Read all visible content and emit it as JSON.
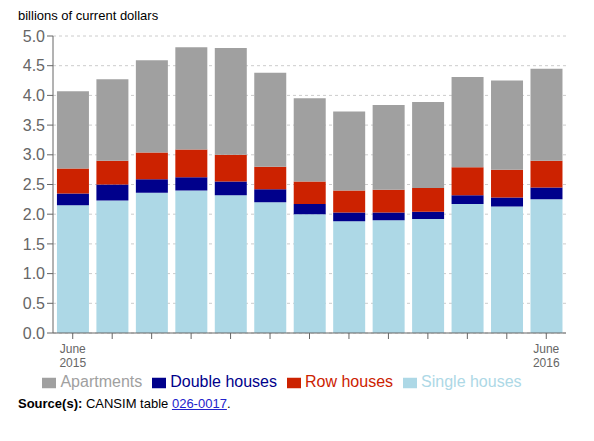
{
  "chart_data": {
    "type": "bar",
    "stacked": true,
    "y_label": "billions of current dollars",
    "categories": [
      "June\n2015",
      null,
      null,
      null,
      null,
      null,
      null,
      null,
      null,
      null,
      null,
      null,
      "June\n2016"
    ],
    "series": [
      {
        "name": "Single houses",
        "color": "#add8e6",
        "values": [
          2.15,
          2.23,
          2.36,
          2.4,
          2.32,
          2.2,
          2.0,
          1.88,
          1.9,
          1.92,
          2.17,
          2.13,
          2.25
        ]
      },
      {
        "name": "Double houses",
        "color": "#00008b",
        "values": [
          0.2,
          0.27,
          0.23,
          0.22,
          0.23,
          0.22,
          0.17,
          0.15,
          0.13,
          0.12,
          0.15,
          0.15,
          0.2
        ]
      },
      {
        "name": "Row houses",
        "color": "#cc2200",
        "values": [
          0.42,
          0.4,
          0.45,
          0.47,
          0.45,
          0.38,
          0.38,
          0.37,
          0.38,
          0.4,
          0.47,
          0.47,
          0.45
        ]
      },
      {
        "name": "Apartments",
        "color": "#a0a0a0",
        "values": [
          1.3,
          1.37,
          1.55,
          1.72,
          1.8,
          1.58,
          1.4,
          1.33,
          1.43,
          1.45,
          1.52,
          1.5,
          1.55
        ]
      }
    ],
    "ylim": [
      0,
      5.0
    ],
    "yticks": [
      {
        "value": 0,
        "label": "0.0"
      },
      0.5,
      {
        "value": 1,
        "label": "1.0"
      },
      1.5,
      {
        "value": 2,
        "label": "2.0"
      },
      2.5,
      {
        "value": 3,
        "label": "3.0"
      },
      3.5,
      {
        "value": 4,
        "label": "4.0"
      },
      4.5,
      {
        "value": 5,
        "label": "5.0"
      }
    ],
    "grid": true,
    "legend": "bottom",
    "annotations": [
      "Source(s):",
      "CANSIM table",
      "026-0017",
      "."
    ]
  }
}
